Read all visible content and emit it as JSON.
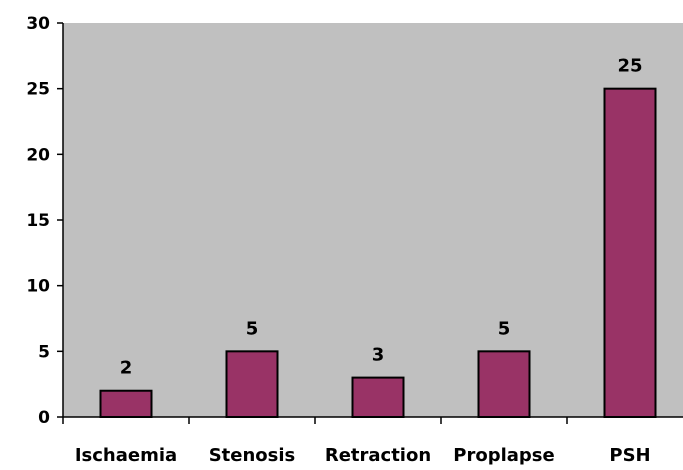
{
  "chart_data": {
    "type": "bar",
    "categories": [
      "Ischaemia",
      "Stenosis",
      "Retraction",
      "Proplapse",
      "PSH"
    ],
    "values": [
      2,
      5,
      3,
      5,
      25
    ],
    "data_labels": [
      "2",
      "5",
      "3",
      "5",
      "25"
    ],
    "title": "",
    "xlabel": "",
    "ylabel": "",
    "ylim": [
      0,
      30
    ],
    "yticks": [
      0,
      5,
      10,
      15,
      20,
      25,
      30
    ],
    "grid": false,
    "legend": "none",
    "colors": {
      "bar_fill": "#993366",
      "bar_stroke": "#000000",
      "plot_background": "#c0c0c0"
    }
  }
}
